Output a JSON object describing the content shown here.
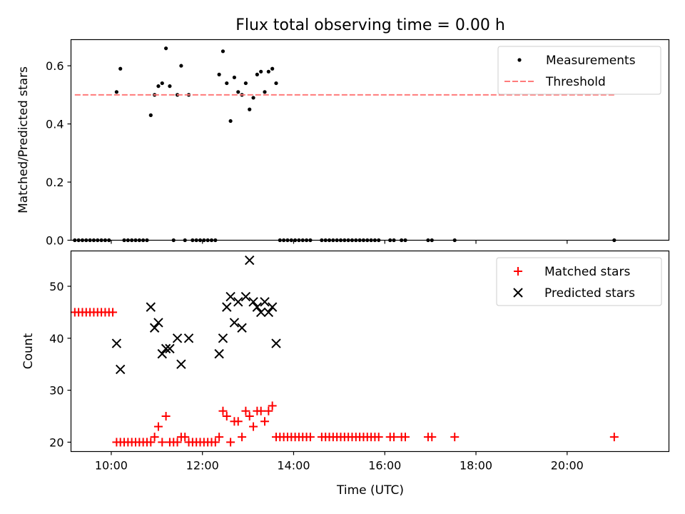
{
  "figure": {
    "title": "Flux total observing time = 0.00 h",
    "xlabel": "Time (UTC)"
  },
  "chart_data": [
    {
      "type": "scatter",
      "ylabel": "Matched/Predicted stars",
      "xlim": [
        "09:07",
        "22:14"
      ],
      "ylim": [
        0,
        0.69
      ],
      "xticks": [
        "10:00",
        "12:00",
        "14:00",
        "16:00",
        "18:00",
        "20:00"
      ],
      "yticks": [
        "0.0",
        "0.2",
        "0.4",
        "0.6"
      ],
      "grid": false,
      "legend_position": "top-right",
      "series": [
        {
          "name": "Measurements",
          "color": "#000000",
          "marker": "dot",
          "points": [
            [
              "09:12",
              0
            ],
            [
              "09:17",
              0
            ],
            [
              "09:22",
              0
            ],
            [
              "09:27",
              0
            ],
            [
              "09:32",
              0
            ],
            [
              "09:37",
              0
            ],
            [
              "09:42",
              0
            ],
            [
              "09:47",
              0
            ],
            [
              "09:52",
              0
            ],
            [
              "09:57",
              0
            ],
            [
              "10:07",
              0.51
            ],
            [
              "10:12",
              0.59
            ],
            [
              "10:17",
              0
            ],
            [
              "10:22",
              0
            ],
            [
              "10:27",
              0
            ],
            [
              "10:32",
              0
            ],
            [
              "10:37",
              0
            ],
            [
              "10:42",
              0
            ],
            [
              "10:47",
              0
            ],
            [
              "10:52",
              0.43
            ],
            [
              "10:57",
              0.5
            ],
            [
              "11:02",
              0.53
            ],
            [
              "11:07",
              0.54
            ],
            [
              "11:12",
              0.66
            ],
            [
              "11:17",
              0.53
            ],
            [
              "11:22",
              0
            ],
            [
              "11:27",
              0.5
            ],
            [
              "11:32",
              0.6
            ],
            [
              "11:37",
              0
            ],
            [
              "11:42",
              0.5
            ],
            [
              "11:47",
              0
            ],
            [
              "11:52",
              0
            ],
            [
              "11:57",
              0
            ],
            [
              "12:02",
              0
            ],
            [
              "12:07",
              0
            ],
            [
              "12:12",
              0
            ],
            [
              "12:17",
              0
            ],
            [
              "12:22",
              0.57
            ],
            [
              "12:27",
              0.65
            ],
            [
              "12:32",
              0.54
            ],
            [
              "12:37",
              0.41
            ],
            [
              "12:42",
              0.56
            ],
            [
              "12:47",
              0.51
            ],
            [
              "12:52",
              0.5
            ],
            [
              "12:57",
              0.54
            ],
            [
              "13:02",
              0.45
            ],
            [
              "13:07",
              0.49
            ],
            [
              "13:12",
              0.57
            ],
            [
              "13:17",
              0.58
            ],
            [
              "13:22",
              0.51
            ],
            [
              "13:27",
              0.58
            ],
            [
              "13:32",
              0.59
            ],
            [
              "13:37",
              0.54
            ],
            [
              "13:42",
              0
            ],
            [
              "13:47",
              0
            ],
            [
              "13:52",
              0
            ],
            [
              "13:57",
              0
            ],
            [
              "14:02",
              0
            ],
            [
              "14:07",
              0
            ],
            [
              "14:12",
              0
            ],
            [
              "14:17",
              0
            ],
            [
              "14:22",
              0
            ],
            [
              "14:37",
              0
            ],
            [
              "14:42",
              0
            ],
            [
              "14:47",
              0
            ],
            [
              "14:52",
              0
            ],
            [
              "14:57",
              0
            ],
            [
              "15:02",
              0
            ],
            [
              "15:07",
              0
            ],
            [
              "15:12",
              0
            ],
            [
              "15:17",
              0
            ],
            [
              "15:22",
              0
            ],
            [
              "15:27",
              0
            ],
            [
              "15:32",
              0
            ],
            [
              "15:37",
              0
            ],
            [
              "15:42",
              0
            ],
            [
              "15:47",
              0
            ],
            [
              "15:52",
              0
            ],
            [
              "16:07",
              0
            ],
            [
              "16:12",
              0
            ],
            [
              "16:22",
              0
            ],
            [
              "16:27",
              0
            ],
            [
              "16:57",
              0
            ],
            [
              "17:02",
              0
            ],
            [
              "17:32",
              0
            ],
            [
              "21:02",
              0
            ]
          ]
        },
        {
          "name": "Threshold",
          "color": "#ff7b7b",
          "style": "dashed",
          "points": [
            [
              "09:12",
              0.5
            ],
            [
              "21:02",
              0.5
            ]
          ]
        }
      ]
    },
    {
      "type": "scatter",
      "ylabel": "Count",
      "xlim": [
        "09:07",
        "22:14"
      ],
      "ylim": [
        18.2,
        56.8
      ],
      "xticks": [
        "10:00",
        "12:00",
        "14:00",
        "16:00",
        "18:00",
        "20:00"
      ],
      "yticks": [
        "20",
        "30",
        "40",
        "50"
      ],
      "grid": false,
      "legend_position": "top-right",
      "series": [
        {
          "name": "Matched stars",
          "color": "#ff0000",
          "marker": "plus",
          "points": [
            [
              "09:12",
              45
            ],
            [
              "09:17",
              45
            ],
            [
              "09:22",
              45
            ],
            [
              "09:27",
              45
            ],
            [
              "09:32",
              45
            ],
            [
              "09:37",
              45
            ],
            [
              "09:42",
              45
            ],
            [
              "09:47",
              45
            ],
            [
              "09:52",
              45
            ],
            [
              "09:57",
              45
            ],
            [
              "10:02",
              45
            ],
            [
              "10:07",
              20
            ],
            [
              "10:12",
              20
            ],
            [
              "10:17",
              20
            ],
            [
              "10:22",
              20
            ],
            [
              "10:27",
              20
            ],
            [
              "10:32",
              20
            ],
            [
              "10:37",
              20
            ],
            [
              "10:42",
              20
            ],
            [
              "10:47",
              20
            ],
            [
              "10:52",
              20
            ],
            [
              "10:57",
              21
            ],
            [
              "11:02",
              23
            ],
            [
              "11:07",
              20
            ],
            [
              "11:12",
              25
            ],
            [
              "11:17",
              20
            ],
            [
              "11:22",
              20
            ],
            [
              "11:27",
              20
            ],
            [
              "11:32",
              21
            ],
            [
              "11:37",
              21
            ],
            [
              "11:42",
              20
            ],
            [
              "11:47",
              20
            ],
            [
              "11:52",
              20
            ],
            [
              "11:57",
              20
            ],
            [
              "12:02",
              20
            ],
            [
              "12:07",
              20
            ],
            [
              "12:12",
              20
            ],
            [
              "12:17",
              20
            ],
            [
              "12:22",
              21
            ],
            [
              "12:27",
              26
            ],
            [
              "12:32",
              25
            ],
            [
              "12:37",
              20
            ],
            [
              "12:42",
              24
            ],
            [
              "12:47",
              24
            ],
            [
              "12:52",
              21
            ],
            [
              "12:57",
              26
            ],
            [
              "13:02",
              25
            ],
            [
              "13:07",
              23
            ],
            [
              "13:12",
              26
            ],
            [
              "13:17",
              26
            ],
            [
              "13:22",
              24
            ],
            [
              "13:27",
              26
            ],
            [
              "13:32",
              27
            ],
            [
              "13:37",
              21
            ],
            [
              "13:42",
              21
            ],
            [
              "13:47",
              21
            ],
            [
              "13:52",
              21
            ],
            [
              "13:57",
              21
            ],
            [
              "14:02",
              21
            ],
            [
              "14:07",
              21
            ],
            [
              "14:12",
              21
            ],
            [
              "14:17",
              21
            ],
            [
              "14:22",
              21
            ],
            [
              "14:37",
              21
            ],
            [
              "14:42",
              21
            ],
            [
              "14:47",
              21
            ],
            [
              "14:52",
              21
            ],
            [
              "14:57",
              21
            ],
            [
              "15:02",
              21
            ],
            [
              "15:07",
              21
            ],
            [
              "15:12",
              21
            ],
            [
              "15:17",
              21
            ],
            [
              "15:22",
              21
            ],
            [
              "15:27",
              21
            ],
            [
              "15:32",
              21
            ],
            [
              "15:37",
              21
            ],
            [
              "15:42",
              21
            ],
            [
              "15:47",
              21
            ],
            [
              "15:52",
              21
            ],
            [
              "16:07",
              21
            ],
            [
              "16:12",
              21
            ],
            [
              "16:22",
              21
            ],
            [
              "16:27",
              21
            ],
            [
              "16:57",
              21
            ],
            [
              "17:02",
              21
            ],
            [
              "17:32",
              21
            ],
            [
              "21:02",
              21
            ]
          ]
        },
        {
          "name": "Predicted stars",
          "color": "#000000",
          "marker": "x",
          "points": [
            [
              "10:07",
              39
            ],
            [
              "10:12",
              34
            ],
            [
              "10:52",
              46
            ],
            [
              "10:57",
              42
            ],
            [
              "11:02",
              43
            ],
            [
              "11:07",
              37
            ],
            [
              "11:12",
              38
            ],
            [
              "11:17",
              38
            ],
            [
              "11:27",
              40
            ],
            [
              "11:32",
              35
            ],
            [
              "11:42",
              40
            ],
            [
              "12:22",
              37
            ],
            [
              "12:27",
              40
            ],
            [
              "12:32",
              46
            ],
            [
              "12:37",
              48
            ],
            [
              "12:42",
              43
            ],
            [
              "12:47",
              47
            ],
            [
              "12:52",
              42
            ],
            [
              "12:57",
              48
            ],
            [
              "13:02",
              55
            ],
            [
              "13:07",
              47
            ],
            [
              "13:12",
              46
            ],
            [
              "13:17",
              45
            ],
            [
              "13:22",
              47
            ],
            [
              "13:27",
              45
            ],
            [
              "13:32",
              46
            ],
            [
              "13:37",
              39
            ]
          ]
        }
      ]
    }
  ]
}
